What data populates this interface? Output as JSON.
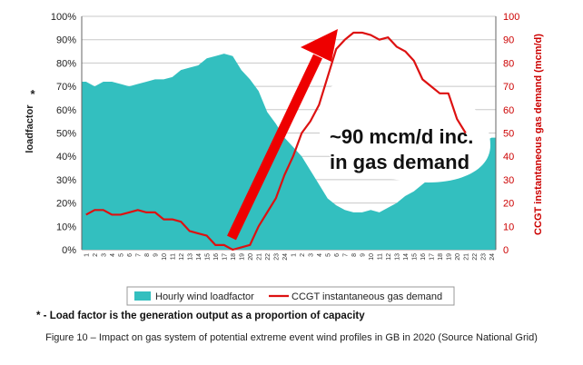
{
  "chart_data": {
    "type": "area+line",
    "x_hours": [
      "1",
      "2",
      "3",
      "4",
      "5",
      "6",
      "7",
      "8",
      "9",
      "10",
      "11",
      "12",
      "13",
      "14",
      "15",
      "16",
      "17",
      "18",
      "19",
      "20",
      "21",
      "22",
      "23",
      "24",
      "1",
      "2",
      "3",
      "4",
      "5",
      "6",
      "7",
      "8",
      "9",
      "10",
      "11",
      "12",
      "13",
      "14",
      "15",
      "16",
      "17",
      "18",
      "19",
      "20",
      "21",
      "22",
      "23",
      "24"
    ],
    "left_axis": {
      "label": "loadfactor",
      "marker": "*",
      "ylim": [
        0,
        100
      ],
      "ticks": [
        "0%",
        "10%",
        "20%",
        "30%",
        "40%",
        "50%",
        "60%",
        "70%",
        "80%",
        "90%",
        "100%"
      ]
    },
    "right_axis": {
      "label": "CCGT instantaneous gas demand (mcm/d)",
      "ylim": [
        0,
        100
      ],
      "ticks": [
        "0",
        "10",
        "20",
        "30",
        "40",
        "50",
        "60",
        "70",
        "80",
        "90",
        "100"
      ],
      "color": "#cc0000"
    },
    "series": [
      {
        "name": "Hourly wind loadfactor",
        "kind": "area",
        "axis": "left",
        "color": "#33bfbf",
        "values": [
          72,
          70,
          72,
          72,
          71,
          70,
          71,
          72,
          73,
          73,
          74,
          77,
          78,
          79,
          82,
          83,
          84,
          83,
          77,
          73,
          68,
          59,
          54,
          48,
          44,
          40,
          34,
          28,
          22,
          19,
          17,
          16,
          16,
          17,
          16,
          18,
          20,
          23,
          25,
          28,
          31,
          34,
          37,
          38,
          40,
          43,
          46,
          48
        ]
      },
      {
        "name": "CCGT instantaneous gas demand",
        "kind": "line",
        "axis": "right",
        "color": "#dd1111",
        "values": [
          15,
          17,
          17,
          15,
          15,
          16,
          17,
          16,
          16,
          13,
          13,
          12,
          8,
          7,
          6,
          2,
          2,
          0,
          1,
          2,
          10,
          16,
          22,
          32,
          40,
          50,
          55,
          62,
          74,
          86,
          90,
          93,
          93,
          92,
          90,
          91,
          87,
          85,
          81,
          73,
          70,
          67,
          67,
          56,
          50,
          null,
          null,
          null
        ]
      }
    ],
    "annotation": {
      "text_line1": "~90 mcm/d inc.",
      "text_line2": "in gas demand"
    },
    "arrow_color": "#ee0000"
  },
  "legend": {
    "area_label": "Hourly wind loadfactor",
    "line_label": "CCGT instantaneous gas demand"
  },
  "footnote": "* - Load factor is the generation output as a proportion of capacity",
  "caption": "Figure 10 – Impact on gas system of potential extreme event wind profiles in GB in 2020 (Source National Grid)"
}
